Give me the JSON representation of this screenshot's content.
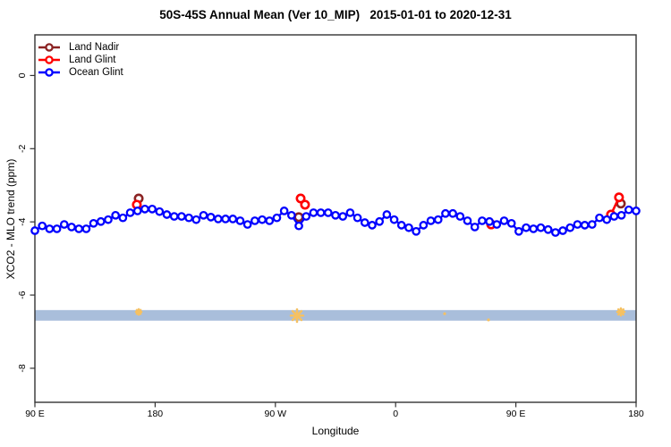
{
  "chart_data": {
    "type": "line",
    "title": "50S-45S Annual Mean (Ver 10_MIP)   2015-01-01 to 2020-12-31",
    "xlabel": "Longitude",
    "ylabel": "XCO2 - MLO trend (ppm)",
    "x_range_deg": [
      90,
      540
    ],
    "ylim": [
      -8.93,
      1.11
    ],
    "grid": false,
    "legend_position": "top-left",
    "x_ticks": [
      {
        "deg": 90,
        "label": "90 E"
      },
      {
        "deg": 180,
        "label": "180"
      },
      {
        "deg": 270,
        "label": "90 W"
      },
      {
        "deg": 360,
        "label": "0"
      },
      {
        "deg": 450,
        "label": "90 E"
      },
      {
        "deg": 540,
        "label": "180"
      }
    ],
    "y_ticks": [
      {
        "value": 0,
        "label": "0"
      },
      {
        "value": -2,
        "label": "-2"
      },
      {
        "value": -4,
        "label": "-4"
      },
      {
        "value": -6,
        "label": "-6"
      },
      {
        "value": -8,
        "label": "-8"
      }
    ],
    "legend": [
      {
        "label": "Land Nadir",
        "color": "#8B2323"
      },
      {
        "label": "Land Glint",
        "color": "#FF0000"
      },
      {
        "label": "Ocean Glint",
        "color": "#0000FF"
      }
    ],
    "band": {
      "ppm_top": -6.41,
      "ppm_bottom": -6.7,
      "color": "#A9BEDB"
    },
    "flags": {
      "color": "#F5C163",
      "points": [
        {
          "deg": 167.7,
          "ppm": -6.46,
          "size": 3
        },
        {
          "deg": 286.2,
          "ppm": -6.56,
          "size": 7
        },
        {
          "deg": 396.7,
          "ppm": -6.51,
          "size": 1.6
        },
        {
          "deg": 429.5,
          "ppm": -6.68,
          "size": 1.6
        },
        {
          "deg": 528.6,
          "ppm": -6.46,
          "size": 4
        }
      ]
    },
    "series": {
      "ocean_glint": {
        "name": "Ocean Glint",
        "color": "#0000FF",
        "deg_start": 90,
        "deg_step": 5.4878,
        "values": [
          -4.24,
          -4.11,
          -4.19,
          -4.19,
          -4.07,
          -4.14,
          -4.19,
          -4.19,
          -4.04,
          -3.99,
          -3.94,
          -3.82,
          -3.89,
          -3.75,
          -3.7,
          -3.65,
          -3.65,
          -3.72,
          -3.8,
          -3.85,
          -3.85,
          -3.89,
          -3.94,
          -3.82,
          -3.87,
          -3.92,
          -3.92,
          -3.92,
          -3.97,
          -4.07,
          -3.97,
          -3.94,
          -3.97,
          -3.89,
          -3.7,
          -3.82,
          -4.11,
          -3.85,
          -3.75,
          -3.75,
          -3.75,
          -3.82,
          -3.85,
          -3.75,
          -3.89,
          -4.02,
          -4.09,
          -3.99,
          -3.8,
          -3.94,
          -4.09,
          -4.16,
          -4.26,
          -4.09,
          -3.97,
          -3.94,
          -3.77,
          -3.77,
          -3.85,
          -3.97,
          -4.14,
          -3.97,
          -3.99,
          -4.07,
          -3.97,
          -4.04,
          -4.26,
          -4.16,
          -4.19,
          -4.16,
          -4.21,
          -4.29,
          -4.24,
          -4.16,
          -4.07,
          -4.09,
          -4.07,
          -3.89,
          -3.94,
          -3.85,
          -3.82,
          -3.67,
          -3.7
        ]
      },
      "land_glint": {
        "name": "Land Glint",
        "color": "#FF0000",
        "segments": [
          [
            {
              "deg": 166.3,
              "ppm": -3.53
            }
          ],
          [
            {
              "deg": 288.9,
              "ppm": -3.36
            },
            {
              "deg": 292.2,
              "ppm": -3.53
            }
          ],
          [
            {
              "deg": 431.5,
              "ppm": -4.07
            }
          ],
          [
            {
              "deg": 521.2,
              "ppm": -3.8
            },
            {
              "deg": 527.2,
              "ppm": -3.33
            }
          ]
        ]
      },
      "land_nadir": {
        "name": "Land Nadir",
        "color": "#8B2323",
        "segments": [
          [
            {
              "deg": 167.7,
              "ppm": -3.36
            }
          ],
          [
            {
              "deg": 287.5,
              "ppm": -3.87
            }
          ],
          [
            {
              "deg": 528.6,
              "ppm": -3.5
            }
          ]
        ]
      }
    }
  }
}
